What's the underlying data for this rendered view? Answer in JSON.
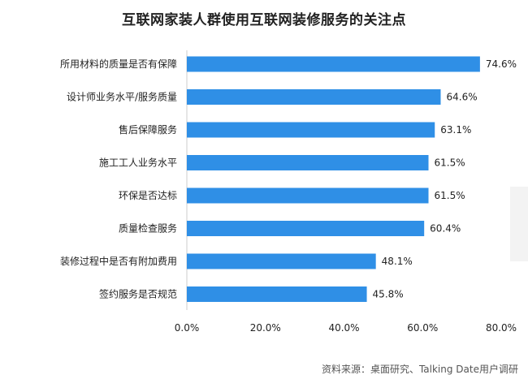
{
  "source": "资料来源：桌面研究、Talking Date用户调研",
  "chart_data": {
    "type": "bar",
    "orientation": "horizontal",
    "title": "互联网家装人群使用互联网装修服务的关注点",
    "categories": [
      "所用材料的质量是否有保障",
      "设计师业务水平/服务质量",
      "售后保障服务",
      "施工工人业务水平",
      "环保是否达标",
      "质量检查服务",
      "装修过程中是否有附加费用",
      "签约服务是否规范"
    ],
    "values": [
      74.6,
      64.6,
      63.1,
      61.5,
      61.5,
      60.4,
      48.1,
      45.8
    ],
    "value_labels": [
      "74.6%",
      "64.6%",
      "63.1%",
      "61.5%",
      "61.5%",
      "60.4%",
      "48.1%",
      "45.8%"
    ],
    "xlim": [
      0,
      80
    ],
    "x_ticks": [
      0,
      20,
      40,
      60,
      80
    ],
    "x_tick_labels": [
      "0.0%",
      "20.0%",
      "40.0%",
      "60.0%",
      "80.0%"
    ],
    "grid": false,
    "bar_color": "#2f8fe6"
  }
}
